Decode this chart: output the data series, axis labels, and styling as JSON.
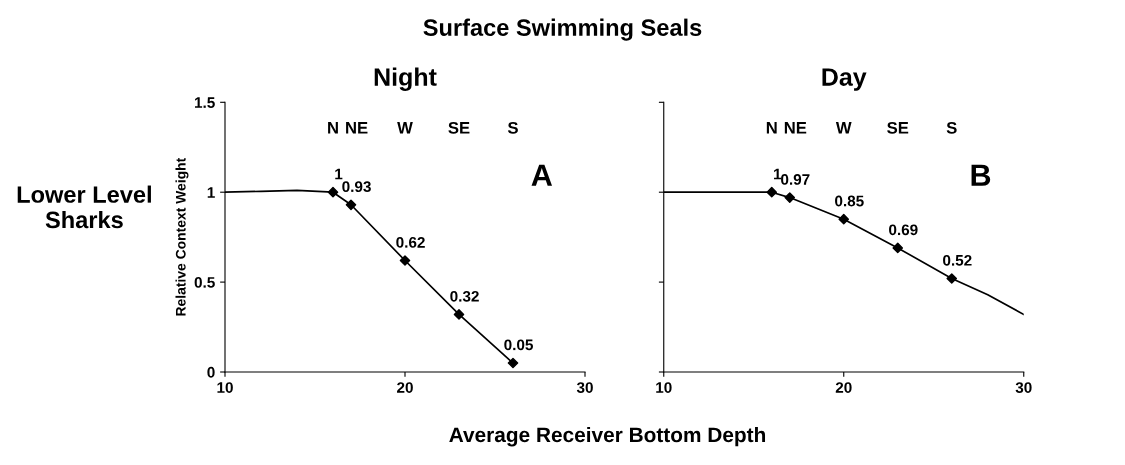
{
  "chart_data": [
    {
      "type": "line",
      "title": "Surface Swimming Seals",
      "subtitle": "Night",
      "xlabel": "Average Receiver Bottom Depth",
      "ylabel": "Relative Context Weight",
      "xlim": [
        10,
        30
      ],
      "xticks": [
        10,
        20,
        30
      ],
      "ylim": [
        0,
        1.5
      ],
      "yticks": [
        0,
        0.5,
        1,
        1.5
      ],
      "grid": false,
      "legend": false,
      "series": [
        {
          "color": "#000000",
          "marker": "none",
          "x": [
            10,
            12,
            14,
            16,
            17,
            20,
            23,
            26
          ],
          "values": [
            1,
            1.005,
            1.01,
            1,
            0.93,
            0.62,
            0.32,
            0.05
          ]
        },
        {
          "type": "scatter",
          "color": "#000000",
          "marker": "diamond",
          "data_labels": true,
          "x": [
            16,
            17,
            20,
            23,
            26
          ],
          "values": [
            1,
            0.93,
            0.62,
            0.32,
            0.05
          ]
        }
      ],
      "annotations": [
        "A",
        "Lower Level Sharks",
        "N",
        "NE",
        "W",
        "SE",
        "S"
      ]
    },
    {
      "type": "line",
      "subtitle": "Day",
      "tick_labels": "x",
      "xlim": [
        10,
        30
      ],
      "xticks": [
        10,
        20,
        30
      ],
      "ylim": [
        0,
        1.5
      ],
      "yticks": [
        0,
        0.5,
        1,
        1.5
      ],
      "grid": false,
      "legend": false,
      "series": [
        {
          "color": "#000000",
          "marker": "none",
          "x": [
            10,
            16,
            17,
            20,
            23,
            26,
            28,
            30
          ],
          "values": [
            1,
            1,
            0.97,
            0.85,
            0.69,
            0.52,
            0.43,
            0.32
          ]
        },
        {
          "type": "scatter",
          "color": "#000000",
          "marker": "diamond",
          "data_labels": true,
          "x": [
            16,
            17,
            20,
            23,
            26
          ],
          "values": [
            1,
            0.97,
            0.85,
            0.69,
            0.52
          ]
        }
      ],
      "annotations": [
        "B",
        "N",
        "NE",
        "W",
        "SE",
        "S"
      ]
    }
  ]
}
